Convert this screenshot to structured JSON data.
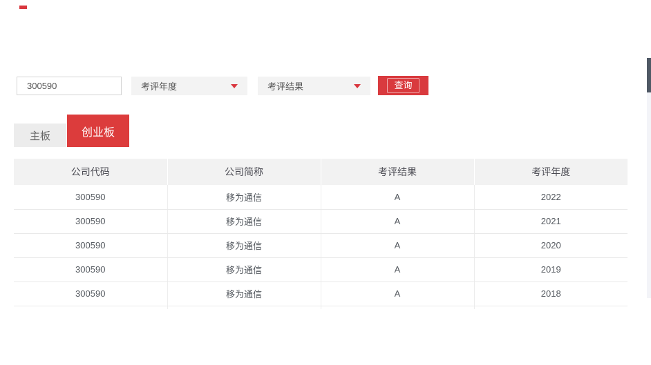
{
  "colors": {
    "accent_red": "#d9363e",
    "tab_active_red": "#dc3c3c",
    "scrollbar_thumb": "#4f5965",
    "header_gray": "#f2f2f2"
  },
  "search": {
    "code_input": {
      "value": "300590"
    },
    "year_dropdown": {
      "label": "考评年度"
    },
    "result_dropdown": {
      "label": "考评结果"
    },
    "query_button": {
      "label": "查询"
    }
  },
  "tabs": [
    {
      "label": "主板",
      "active": false
    },
    {
      "label": "创业板",
      "active": true
    }
  ],
  "table": {
    "columns": [
      "公司代码",
      "公司简称",
      "考评结果",
      "考评年度"
    ],
    "rows": [
      [
        "300590",
        "移为通信",
        "A",
        "2022"
      ],
      [
        "300590",
        "移为通信",
        "A",
        "2021"
      ],
      [
        "300590",
        "移为通信",
        "A",
        "2020"
      ],
      [
        "300590",
        "移为通信",
        "A",
        "2019"
      ],
      [
        "300590",
        "移为通信",
        "A",
        "2018"
      ]
    ]
  }
}
